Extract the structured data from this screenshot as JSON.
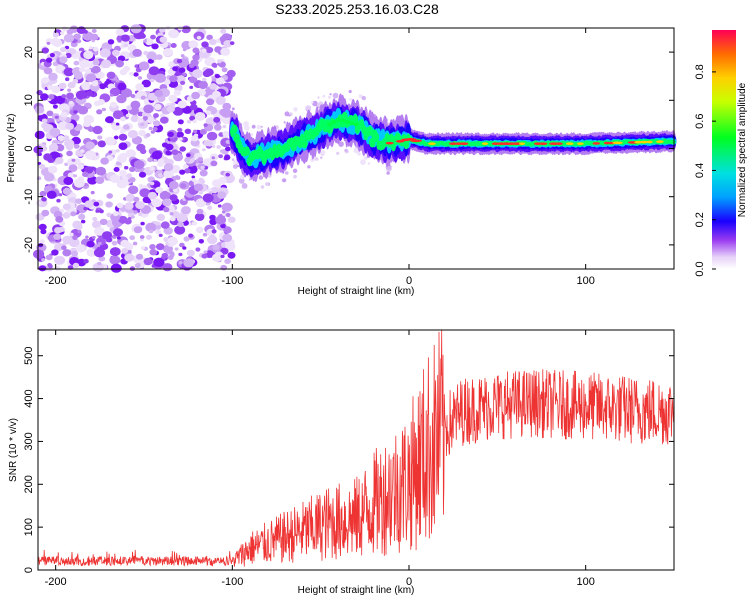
{
  "title": "S233.2025.253.16.03.C28",
  "chart_data": [
    {
      "type": "heatmap",
      "xlabel": "Height of straight line (km)",
      "ylabel": "Frequency (Hz)",
      "xlim": [
        -210,
        150
      ],
      "ylim": [
        -25,
        25
      ],
      "xticks": [
        -200,
        -100,
        0,
        100
      ],
      "yticks": [
        -20,
        -10,
        0,
        10,
        20
      ],
      "colorbar": {
        "label": "Normalized spectral amplitude",
        "range": [
          0,
          0.97
        ],
        "ticks": [
          0.0,
          0.2,
          0.4,
          0.6,
          0.8
        ]
      },
      "description_points": {
        "noise_region_x": [
          -210,
          -100
        ],
        "ridge": [
          {
            "x": -100,
            "f": 4
          },
          {
            "x": -95,
            "f": 0
          },
          {
            "x": -90,
            "f": -2
          },
          {
            "x": -80,
            "f": -1
          },
          {
            "x": -70,
            "f": 0
          },
          {
            "x": -60,
            "f": 2
          },
          {
            "x": -50,
            "f": 4
          },
          {
            "x": -40,
            "f": 6
          },
          {
            "x": -30,
            "f": 5
          },
          {
            "x": -20,
            "f": 2
          },
          {
            "x": -10,
            "f": 1
          },
          {
            "x": 0,
            "f": 2
          },
          {
            "x": 10,
            "f": 1
          },
          {
            "x": 50,
            "f": 1
          },
          {
            "x": 100,
            "f": 1
          },
          {
            "x": 150,
            "f": 1.5
          }
        ]
      }
    },
    {
      "type": "line",
      "xlabel": "Height of straight line (km)",
      "ylabel": "SNR (10 * v/v)",
      "xlim": [
        -210,
        150
      ],
      "ylim": [
        0,
        560
      ],
      "xticks": [
        -200,
        -100,
        0,
        100
      ],
      "yticks": [
        0,
        100,
        200,
        300,
        400,
        500
      ],
      "color": "#ee3333",
      "envelope": [
        {
          "x": -210,
          "y": 20
        },
        {
          "x": -100,
          "y": 20
        },
        {
          "x": -90,
          "y": 50
        },
        {
          "x": -75,
          "y": 70
        },
        {
          "x": -60,
          "y": 90
        },
        {
          "x": -45,
          "y": 110
        },
        {
          "x": -30,
          "y": 120
        },
        {
          "x": -15,
          "y": 170
        },
        {
          "x": 0,
          "y": 210
        },
        {
          "x": 10,
          "y": 280
        },
        {
          "x": 20,
          "y": 330
        },
        {
          "x": 30,
          "y": 370
        },
        {
          "x": 50,
          "y": 385
        },
        {
          "x": 70,
          "y": 390
        },
        {
          "x": 90,
          "y": 385
        },
        {
          "x": 110,
          "y": 380
        },
        {
          "x": 130,
          "y": 372
        },
        {
          "x": 150,
          "y": 370
        }
      ]
    }
  ]
}
